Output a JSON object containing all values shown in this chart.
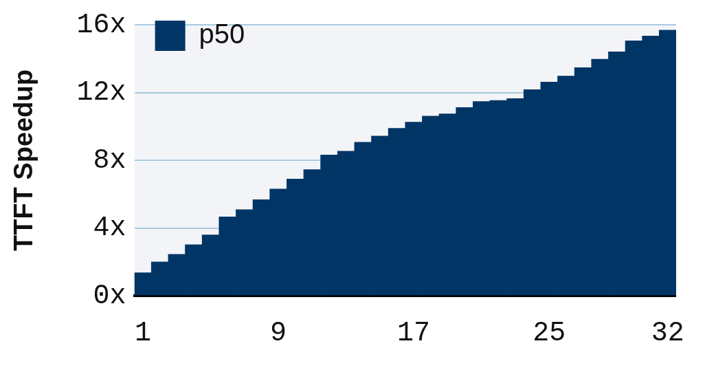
{
  "chart_data": {
    "type": "bar",
    "ylabel": "TTFT Speedup",
    "categories": [
      "1",
      null,
      null,
      null,
      null,
      null,
      null,
      null,
      "9",
      null,
      null,
      null,
      null,
      null,
      null,
      null,
      "17",
      null,
      null,
      null,
      null,
      null,
      null,
      null,
      "25",
      null,
      null,
      null,
      null,
      null,
      null,
      "32"
    ],
    "series": [
      {
        "name": "p50",
        "color": "#003566",
        "values": [
          1.36,
          2.0,
          2.44,
          3.01,
          3.59,
          4.66,
          5.08,
          5.67,
          6.3,
          6.89,
          7.45,
          8.31,
          8.53,
          9.06,
          9.43,
          9.89,
          10.25,
          10.61,
          10.74,
          11.11,
          11.47,
          11.53,
          11.64,
          12.17,
          12.62,
          12.97,
          13.47,
          13.97,
          14.4,
          15.05,
          15.34,
          15.68
        ]
      }
    ],
    "ylim": [
      0,
      16
    ],
    "yticks": [
      {
        "value": 0,
        "label": "0x"
      },
      {
        "value": 4,
        "label": "4x"
      },
      {
        "value": 8,
        "label": "8x"
      },
      {
        "value": 12,
        "label": "12x"
      },
      {
        "value": 16,
        "label": "16x"
      }
    ],
    "grid": "y",
    "legend": "top left"
  }
}
